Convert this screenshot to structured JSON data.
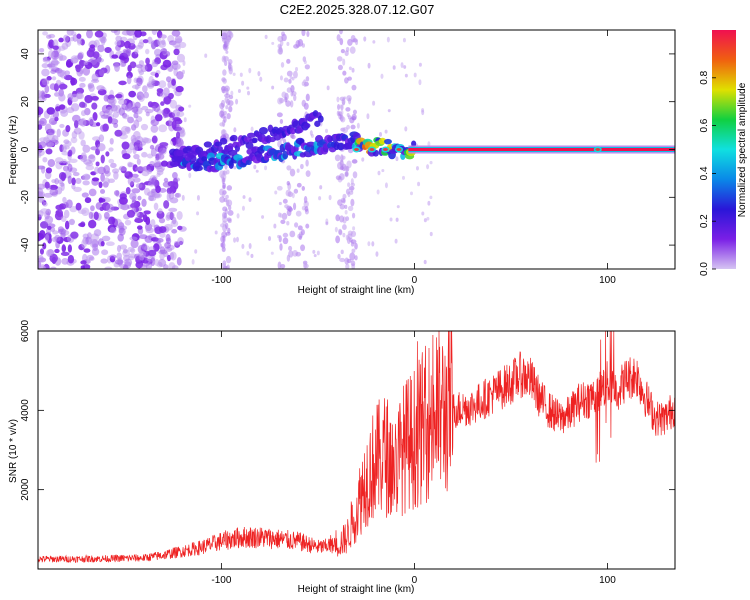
{
  "figure": {
    "title": "C2E2.2025.328.07.12.G07"
  },
  "colorbar": {
    "label": "Normalized spectral amplitude",
    "ticks": [
      "0.0",
      "0.2",
      "0.4",
      "0.6",
      "0.8"
    ],
    "tick_values": [
      0.0,
      0.2,
      0.4,
      0.6,
      0.8
    ],
    "range": [
      0,
      1
    ],
    "colors": [
      "#d6c4f2",
      "#7a1fe6",
      "#2a16d8",
      "#0a88e8",
      "#10e0e0",
      "#10d040",
      "#e0e000",
      "#f06010",
      "#f01050"
    ]
  },
  "chart_data": [
    {
      "type": "heatmap",
      "xlabel": "Height of straight line (km)",
      "ylabel": "Frequency (Hz)",
      "xlim": [
        -195,
        135
      ],
      "ylim": [
        -50,
        50
      ],
      "x_ticks": [
        -100,
        0,
        100
      ],
      "x_tick_labels": [
        "-100",
        "0",
        "100"
      ],
      "y_ticks": [
        -40,
        -20,
        0,
        20,
        40
      ],
      "y_tick_labels": [
        "-40",
        "-20",
        "0",
        "20",
        "40"
      ],
      "grid": false,
      "ridge": {
        "upper_branch": [
          {
            "x": -125,
            "y": -3
          },
          {
            "x": -110,
            "y": -1
          },
          {
            "x": -95,
            "y": 2
          },
          {
            "x": -80,
            "y": 5
          },
          {
            "x": -65,
            "y": 9
          },
          {
            "x": -50,
            "y": 13
          }
        ],
        "lower_branch": [
          {
            "x": -125,
            "y": -4
          },
          {
            "x": -105,
            "y": -6
          },
          {
            "x": -85,
            "y": -3
          },
          {
            "x": -65,
            "y": 0
          },
          {
            "x": -45,
            "y": 2
          },
          {
            "x": -30,
            "y": 4
          },
          {
            "x": -20,
            "y": 1
          },
          {
            "x": -5,
            "y": 0
          },
          {
            "x": 0,
            "y": 0
          },
          {
            "x": 135,
            "y": 0
          }
        ],
        "strong_line": {
          "x_start": 0,
          "x_end": 135,
          "y": 0,
          "amplitude": 1.0
        },
        "noise_region_x": [
          -195,
          -120
        ],
        "noise_bands_x": [
          [
            -100,
            -95
          ],
          [
            -70,
            -55
          ],
          [
            -40,
            -30
          ]
        ]
      }
    },
    {
      "type": "line",
      "xlabel": "Height of straight line (km)",
      "ylabel": "SNR (10 * v/v)",
      "xlim": [
        -195,
        135
      ],
      "ylim": [
        0,
        6000
      ],
      "x_ticks": [
        -100,
        0,
        100
      ],
      "x_tick_labels": [
        "-100",
        "0",
        "100"
      ],
      "y_ticks": [
        2000,
        4000,
        6000
      ],
      "y_tick_labels": [
        "2000",
        "4000",
        "6000"
      ],
      "grid": false,
      "series": [
        {
          "color": "#ee2222",
          "x": [
            -195,
            -180,
            -160,
            -140,
            -130,
            -120,
            -110,
            -100,
            -90,
            -80,
            -70,
            -60,
            -50,
            -40,
            -35,
            -30,
            -25,
            -20,
            -15,
            -10,
            -5,
            0,
            5,
            10,
            20,
            30,
            40,
            50,
            55,
            60,
            65,
            70,
            75,
            80,
            85,
            90,
            95,
            100,
            105,
            110,
            115,
            120,
            125,
            130,
            135
          ],
          "y": [
            250,
            250,
            260,
            280,
            350,
            450,
            550,
            700,
            800,
            800,
            750,
            700,
            550,
            600,
            800,
            1500,
            2300,
            2700,
            2900,
            2600,
            3100,
            3300,
            3600,
            3900,
            4000,
            4100,
            4400,
            4700,
            4900,
            4800,
            4300,
            4000,
            3800,
            3900,
            4200,
            4300,
            4400,
            4700,
            4500,
            4800,
            4900,
            4300,
            3800,
            3800,
            4100
          ]
        }
      ]
    }
  ]
}
